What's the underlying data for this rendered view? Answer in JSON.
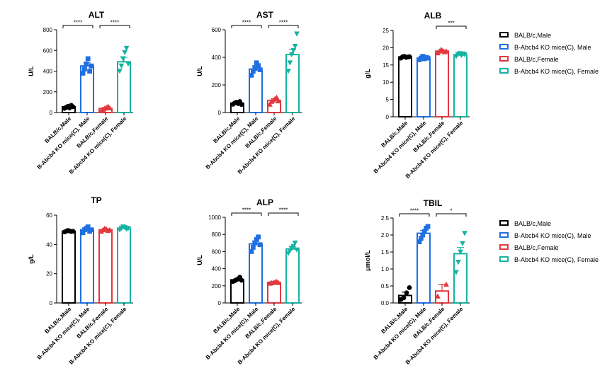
{
  "categories": [
    "BALB/c,Male",
    "B-Abcb4 KO mice(C), Male",
    "BALB/c,Female",
    "B-Abcb4 KO mice(C), Female"
  ],
  "colors": [
    "#000000",
    "#1f6fe0",
    "#e0393e",
    "#16b3a0"
  ],
  "legends": [
    {
      "entries": [
        "BALB/c,Male",
        "B-Abcb4 KO mice(C), Male",
        "BALB/c,Female",
        "B-Abcb4 KO mice(C), Female"
      ]
    },
    {
      "entries": [
        "BALB/c,Male",
        "B-Abcb4 KO mice(C), Male",
        "BALB/c,Female",
        "B-Abcb4 KO mice(C), Female"
      ]
    }
  ],
  "chart_data": [
    {
      "type": "bar",
      "title": "ALT",
      "ylabel": "U/L",
      "ylim": [
        0,
        800
      ],
      "yticks": [
        "0",
        "200",
        "400",
        "600",
        "800"
      ],
      "categories": [
        "BALB/c,Male",
        "B-Abcb4 KO mice(C), Male",
        "BALB/c,Female",
        "B-Abcb4 KO mice(C), Female"
      ],
      "values": [
        55,
        450,
        40,
        490
      ],
      "errors": [
        8,
        30,
        8,
        45
      ],
      "points": [
        [
          40,
          50,
          60,
          45,
          70,
          55
        ],
        [
          380,
          420,
          470,
          520,
          400,
          450
        ],
        [
          20,
          30,
          40,
          50,
          60,
          45
        ],
        [
          400,
          450,
          520,
          580,
          620,
          470
        ]
      ],
      "markers": [
        "circle",
        "square",
        "triangle",
        "triangle-down"
      ],
      "significance": [
        {
          "from": 0,
          "to": 1,
          "label": "****"
        },
        {
          "from": 2,
          "to": 3,
          "label": "****"
        }
      ]
    },
    {
      "type": "bar",
      "title": "AST",
      "ylabel": "U/L",
      "ylim": [
        0,
        600
      ],
      "yticks": [
        "0",
        "200",
        "400",
        "600"
      ],
      "categories": [
        "BALB/c,Male",
        "B-Abcb4 KO mice(C), Male",
        "BALB/c,Female",
        "B-Abcb4 KO mice(C), Female"
      ],
      "values": [
        68,
        315,
        88,
        420
      ],
      "errors": [
        6,
        25,
        12,
        35
      ],
      "points": [
        [
          60,
          70,
          75,
          65,
          80,
          58
        ],
        [
          270,
          300,
          320,
          360,
          340,
          310
        ],
        [
          60,
          80,
          90,
          100,
          110,
          85
        ],
        [
          300,
          360,
          420,
          450,
          480,
          570
        ]
      ],
      "markers": [
        "circle",
        "square",
        "triangle",
        "triangle-down"
      ],
      "significance": [
        {
          "from": 0,
          "to": 1,
          "label": "****"
        },
        {
          "from": 2,
          "to": 3,
          "label": "****"
        }
      ]
    },
    {
      "type": "bar",
      "title": "ALB",
      "ylabel": "g/L",
      "ylim": [
        0,
        25
      ],
      "yticks": [
        "0",
        "5",
        "10",
        "15",
        "20",
        "25"
      ],
      "categories": [
        "BALB/c,Male",
        "B-Abcb4 KO mice(C), Male",
        "BALB/c,Female",
        "B-Abcb4 KO mice(C), Female"
      ],
      "values": [
        17.3,
        17.0,
        19.0,
        18.0
      ],
      "errors": [
        0.2,
        0.4,
        0.3,
        0.3
      ],
      "points": [
        [
          17.0,
          17.4,
          17.5,
          17.2,
          17.3,
          17.4
        ],
        [
          16.5,
          17.0,
          17.5,
          16.8,
          17.2,
          17.0
        ],
        [
          18.5,
          19.0,
          19.5,
          19.2,
          18.8,
          19.0
        ],
        [
          17.5,
          18.0,
          18.3,
          17.8,
          18.2,
          18.0
        ]
      ],
      "markers": [
        "circle",
        "square",
        "triangle",
        "triangle-down"
      ],
      "significance": [
        {
          "from": 2,
          "to": 3,
          "label": "***"
        }
      ]
    },
    {
      "type": "bar",
      "title": "TP",
      "ylabel": "g/L",
      "ylim": [
        0,
        60
      ],
      "yticks": [
        "0",
        "20",
        "40",
        "60"
      ],
      "categories": [
        "BALB/c,Male",
        "B-Abcb4 KO mice(C), Male",
        "BALB/c,Female",
        "B-Abcb4 KO mice(C), Female"
      ],
      "values": [
        49,
        50,
        50,
        51
      ],
      "errors": [
        0.5,
        0.8,
        0.6,
        0.7
      ],
      "points": [
        [
          48.5,
          49,
          49.5,
          49.2,
          48.8,
          49
        ],
        [
          48,
          50,
          51,
          52,
          49,
          50
        ],
        [
          49,
          50,
          51,
          50.5,
          49.5,
          50
        ],
        [
          50,
          51,
          52,
          51.5,
          50.5,
          51
        ]
      ],
      "markers": [
        "circle",
        "square",
        "triangle",
        "triangle-down"
      ],
      "significance": []
    },
    {
      "type": "bar",
      "title": "ALP",
      "ylabel": "U/L",
      "ylim": [
        0,
        1000
      ],
      "yticks": [
        "0",
        "200",
        "400",
        "600",
        "800",
        "1000"
      ],
      "categories": [
        "BALB/c,Male",
        "B-Abcb4 KO mice(C), Male",
        "BALB/c,Female",
        "B-Abcb4 KO mice(C), Female"
      ],
      "values": [
        270,
        690,
        240,
        630
      ],
      "errors": [
        12,
        35,
        8,
        25
      ],
      "points": [
        [
          250,
          260,
          270,
          280,
          300,
          265
        ],
        [
          600,
          650,
          700,
          740,
          770,
          680
        ],
        [
          230,
          235,
          240,
          245,
          250,
          238
        ],
        [
          580,
          610,
          640,
          660,
          700,
          620
        ]
      ],
      "markers": [
        "circle",
        "square",
        "triangle",
        "triangle-down"
      ],
      "significance": [
        {
          "from": 0,
          "to": 1,
          "label": "****"
        },
        {
          "from": 2,
          "to": 3,
          "label": "****"
        }
      ]
    },
    {
      "type": "bar",
      "title": "TBIL",
      "ylabel": "μmol/L",
      "ylim": [
        0,
        2.5
      ],
      "yticks": [
        "0.0",
        "0.5",
        "1.0",
        "1.5",
        "2.0",
        "2.5"
      ],
      "categories": [
        "BALB/c,Male",
        "B-Abcb4 KO mice(C), Male",
        "BALB/c,Female",
        "B-Abcb4 KO mice(C), Female"
      ],
      "values": [
        0.22,
        2.05,
        0.35,
        1.45
      ],
      "errors": [
        0.1,
        0.08,
        0.2,
        0.18
      ],
      "points": [
        [
          0.1,
          0.15,
          0.3,
          0.45
        ],
        [
          1.8,
          1.9,
          2.0,
          2.1,
          2.2,
          2.25
        ],
        [
          0.2,
          0.55
        ],
        [
          0.9,
          1.2,
          1.5,
          1.75,
          2.05
        ]
      ],
      "markers": [
        "circle",
        "square",
        "triangle",
        "triangle-down"
      ],
      "significance": [
        {
          "from": 0,
          "to": 1,
          "label": "****"
        },
        {
          "from": 2,
          "to": 3,
          "label": "*"
        }
      ]
    }
  ]
}
